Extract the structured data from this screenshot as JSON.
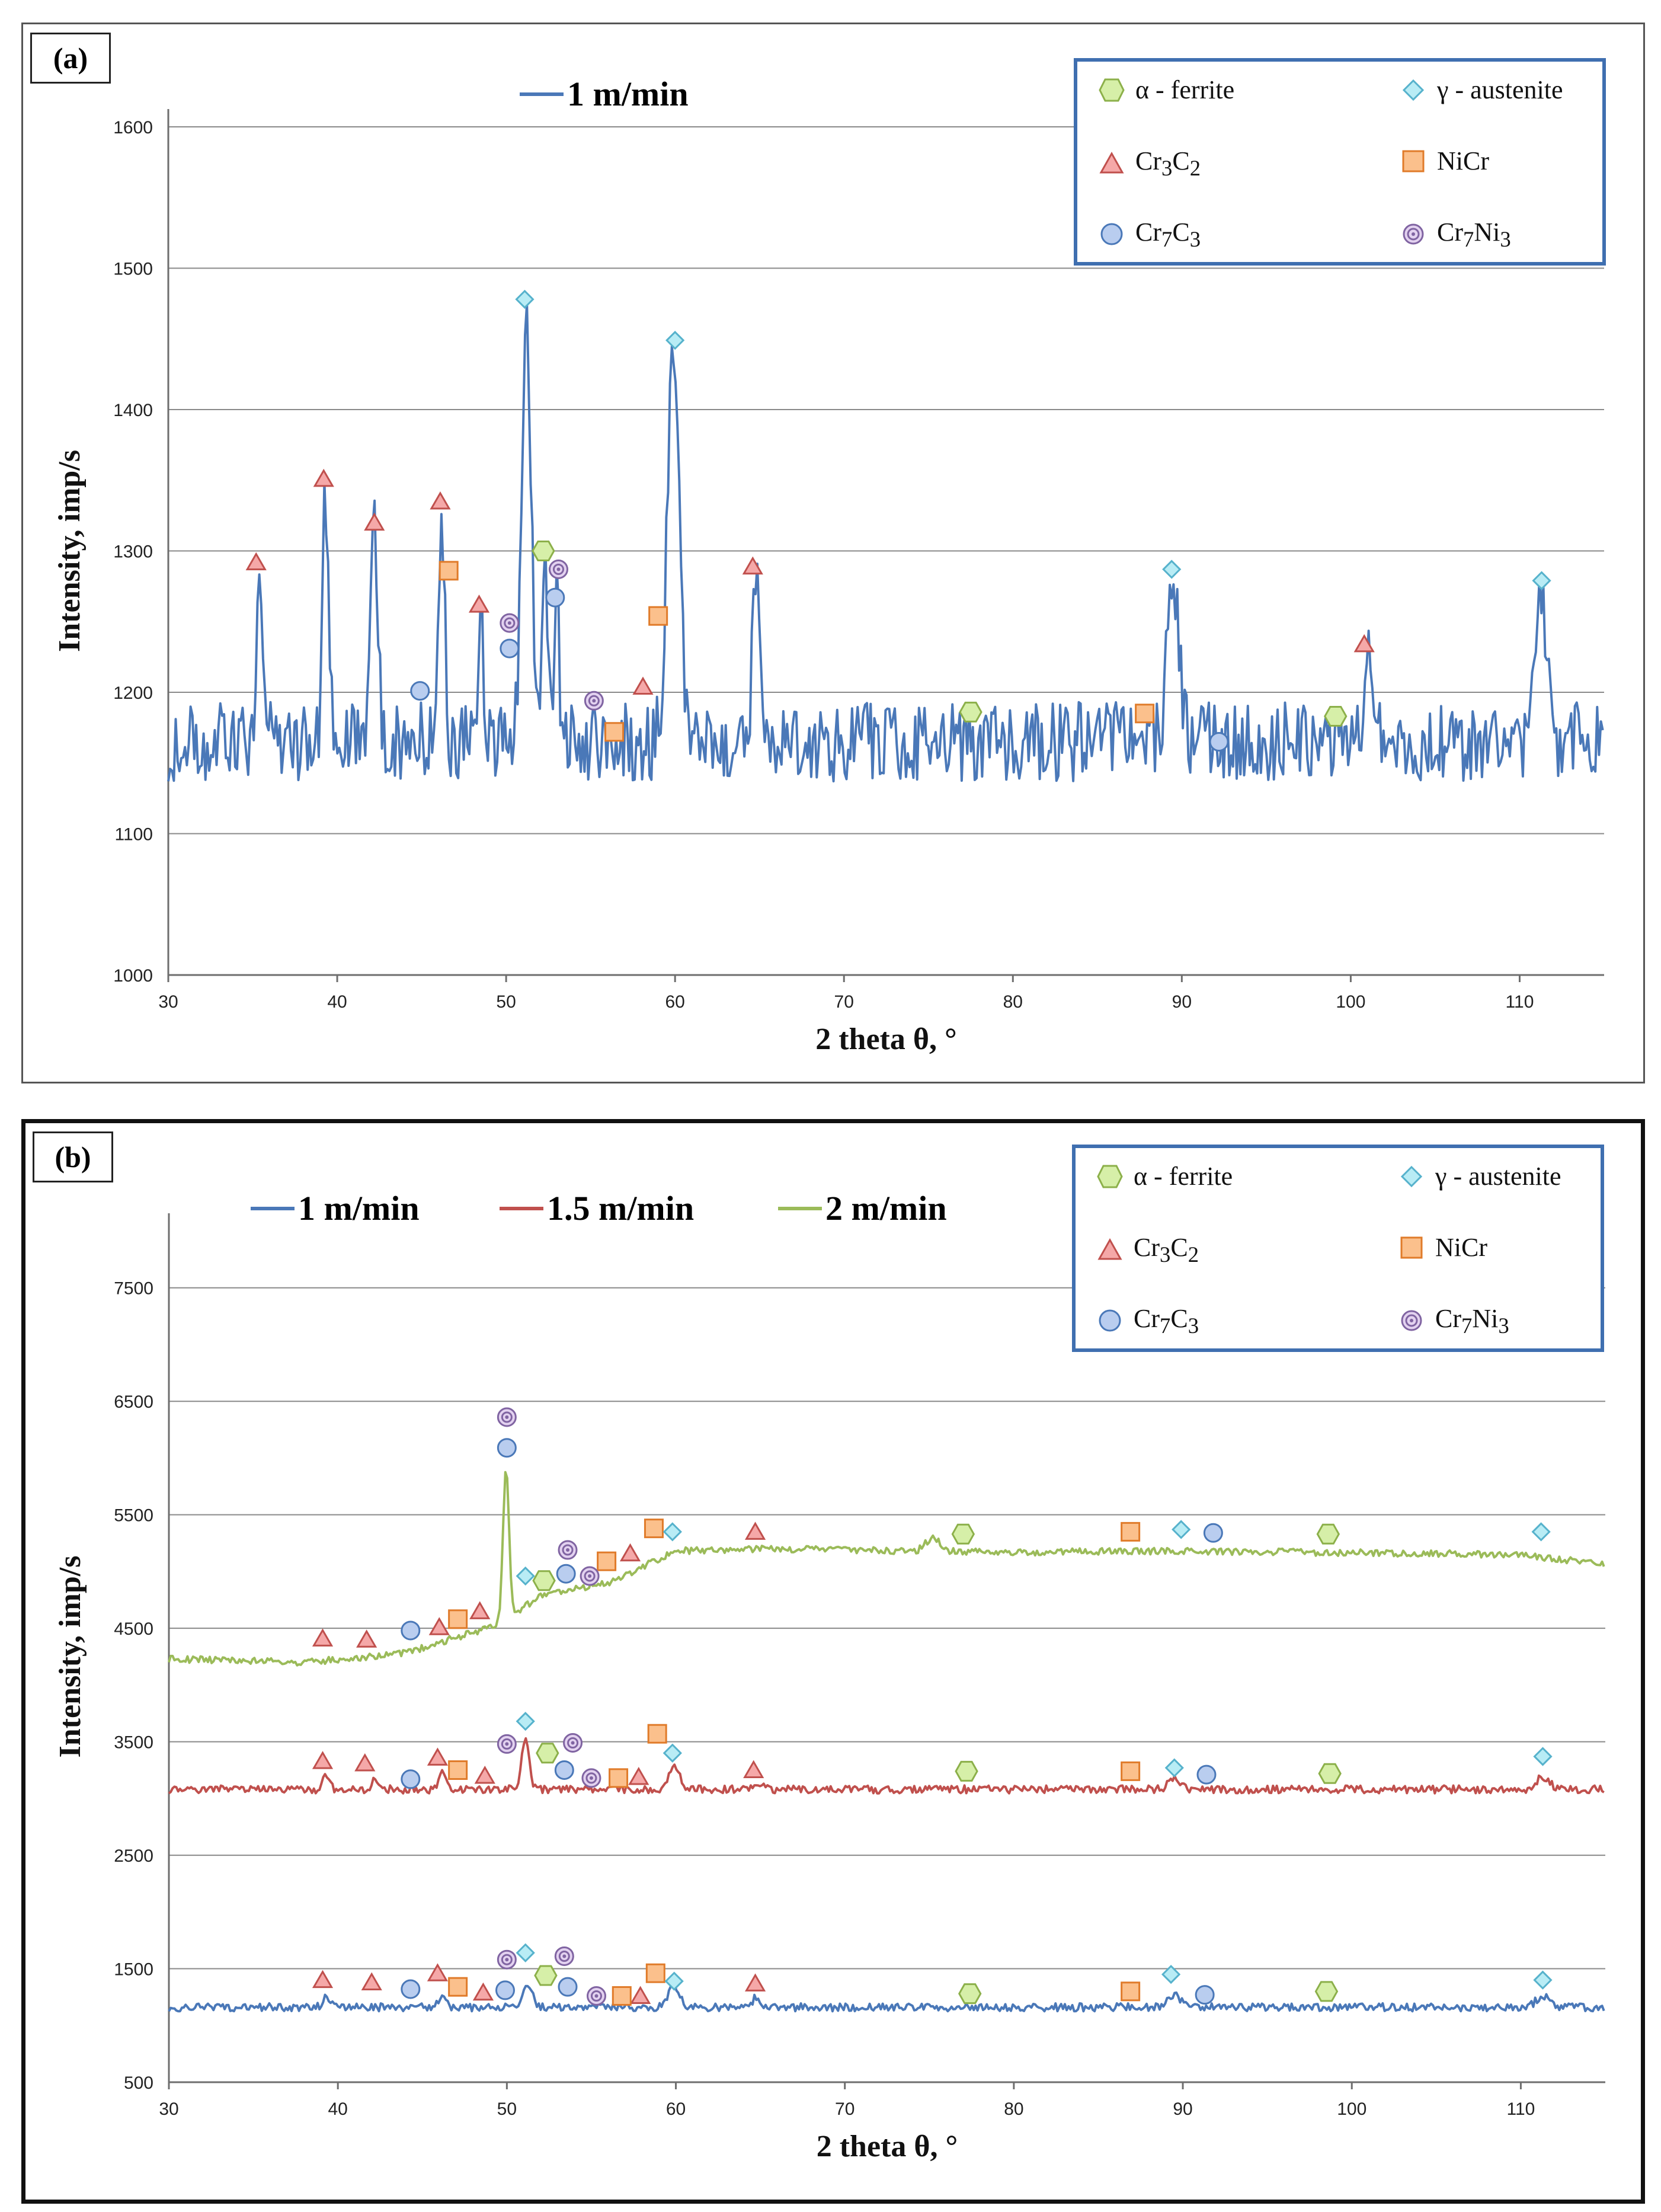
{
  "chart_data": [
    {
      "panel_label": "(a)",
      "type": "line",
      "xlabel": "2 theta θ, °",
      "ylabel": "Intensity, imp/s",
      "xlim": [
        30,
        115
      ],
      "ylim": [
        1000,
        1600
      ],
      "x_ticks": [
        30,
        40,
        50,
        60,
        70,
        80,
        90,
        100,
        110
      ],
      "y_ticks": [
        1000,
        1100,
        1200,
        1300,
        1400,
        1500,
        1600
      ],
      "series": [
        {
          "name": "1 m/min",
          "color": "#4a78b8",
          "baseline": 1165,
          "noise": 28,
          "peaks": [
            [
              35.4,
              1285,
              0.18
            ],
            [
              39.3,
              1340,
              0.18
            ],
            [
              42.2,
              1310,
              0.2
            ],
            [
              46.2,
              1325,
              0.18
            ],
            [
              48.5,
              1250,
              0.16
            ],
            [
              51.2,
              1470,
              0.28
            ],
            [
              52.3,
              1285,
              0.15
            ],
            [
              53.0,
              1265,
              0.15
            ],
            [
              59.9,
              1440,
              0.35
            ],
            [
              64.8,
              1275,
              0.22
            ],
            [
              89.5,
              1275,
              0.35
            ],
            [
              101.0,
              1218,
              0.2
            ],
            [
              111.3,
              1265,
              0.35
            ]
          ]
        }
      ],
      "markers": [
        {
          "phase": "Cr3C2",
          "x": 35.2,
          "y": 1292
        },
        {
          "phase": "Cr3C2",
          "x": 39.2,
          "y": 1351
        },
        {
          "phase": "Cr3C2",
          "x": 42.2,
          "y": 1320
        },
        {
          "phase": "Cr3C2",
          "x": 46.1,
          "y": 1335
        },
        {
          "phase": "Cr3C2",
          "x": 48.4,
          "y": 1262
        },
        {
          "phase": "Cr3C2",
          "x": 58.1,
          "y": 1204
        },
        {
          "phase": "Cr3C2",
          "x": 64.6,
          "y": 1289
        },
        {
          "phase": "Cr3C2",
          "x": 100.8,
          "y": 1234
        },
        {
          "phase": "NiCr",
          "x": 46.6,
          "y": 1286
        },
        {
          "phase": "NiCr",
          "x": 56.4,
          "y": 1172
        },
        {
          "phase": "NiCr",
          "x": 59.0,
          "y": 1254
        },
        {
          "phase": "NiCr",
          "x": 87.8,
          "y": 1185
        },
        {
          "phase": "γ - austenite",
          "x": 51.1,
          "y": 1478
        },
        {
          "phase": "γ - austenite",
          "x": 60.0,
          "y": 1449
        },
        {
          "phase": "γ - austenite",
          "x": 89.4,
          "y": 1287
        },
        {
          "phase": "γ - austenite",
          "x": 111.3,
          "y": 1279
        },
        {
          "phase": "α - ferrite",
          "x": 52.2,
          "y": 1300
        },
        {
          "phase": "α - ferrite",
          "x": 77.5,
          "y": 1186
        },
        {
          "phase": "α - ferrite",
          "x": 99.1,
          "y": 1183
        },
        {
          "phase": "Cr7C3",
          "x": 44.9,
          "y": 1201
        },
        {
          "phase": "Cr7C3",
          "x": 50.2,
          "y": 1231
        },
        {
          "phase": "Cr7C3",
          "x": 52.9,
          "y": 1267
        },
        {
          "phase": "Cr7C3",
          "x": 92.2,
          "y": 1165
        },
        {
          "phase": "Cr7Ni3",
          "x": 50.2,
          "y": 1249
        },
        {
          "phase": "Cr7Ni3",
          "x": 53.1,
          "y": 1287
        },
        {
          "phase": "Cr7Ni3",
          "x": 55.2,
          "y": 1194
        }
      ]
    },
    {
      "panel_label": "(b)",
      "type": "line",
      "xlabel": "2 theta θ, °",
      "ylabel": "Intensity, imp/s",
      "xlim": [
        30,
        115
      ],
      "ylim": [
        500,
        8000
      ],
      "x_ticks": [
        30,
        40,
        50,
        60,
        70,
        80,
        90,
        100,
        110
      ],
      "y_ticks": [
        500,
        1500,
        2500,
        3500,
        4500,
        5500,
        6500,
        7500
      ],
      "series": [
        {
          "name": "1 m/min",
          "color": "#4a78b8",
          "baseline": 1160,
          "noise": 35,
          "peaks": [
            [
              39.3,
              1270,
              0.2
            ],
            [
              46.2,
              1290,
              0.2
            ],
            [
              51.2,
              1360,
              0.3
            ],
            [
              59.9,
              1340,
              0.35
            ],
            [
              64.8,
              1250,
              0.25
            ],
            [
              89.5,
              1270,
              0.35
            ],
            [
              111.3,
              1260,
              0.4
            ]
          ]
        },
        {
          "name": "1.5 m/min",
          "color": "#c0504d",
          "baseline": 3080,
          "noise": 35,
          "peaks": [
            [
              39.3,
              3200,
              0.2
            ],
            [
              42.2,
              3170,
              0.2
            ],
            [
              46.2,
              3220,
              0.2
            ],
            [
              51.1,
              3520,
              0.22
            ],
            [
              59.9,
              3280,
              0.35
            ],
            [
              64.8,
              3150,
              0.25
            ],
            [
              89.5,
              3170,
              0.35
            ],
            [
              111.3,
              3190,
              0.4
            ]
          ]
        },
        {
          "name": "2 m/min",
          "color": "#9bbb59",
          "noise": 30,
          "ramp": [
            [
              30,
              4230
            ],
            [
              38,
              4200
            ],
            [
              44,
              4280
            ],
            [
              47,
              4420
            ],
            [
              49.5,
              4530
            ],
            [
              52,
              4790
            ],
            [
              56,
              4900
            ],
            [
              60,
              5180
            ],
            [
              65,
              5200
            ],
            [
              80,
              5170
            ],
            [
              90,
              5180
            ],
            [
              110,
              5150
            ],
            [
              115,
              5060
            ]
          ],
          "peaks": [
            [
              49.95,
              5900,
              0.18
            ],
            [
              75.2,
              5300,
              0.4
            ]
          ]
        }
      ],
      "markers": [
        {
          "phase": "Cr7Ni3",
          "x": 50.0,
          "y": 6360
        },
        {
          "phase": "Cr7C3",
          "x": 50.0,
          "y": 6090
        },
        {
          "phase": "NiCr",
          "x": 58.7,
          "y": 5380
        },
        {
          "phase": "γ - austenite",
          "x": 59.8,
          "y": 5350
        },
        {
          "phase": "Cr3C2",
          "x": 64.7,
          "y": 5350
        },
        {
          "phase": "α - ferrite",
          "x": 77.0,
          "y": 5330
        },
        {
          "phase": "NiCr",
          "x": 86.9,
          "y": 5350
        },
        {
          "phase": "γ - austenite",
          "x": 89.9,
          "y": 5370
        },
        {
          "phase": "Cr7C3",
          "x": 91.8,
          "y": 5340
        },
        {
          "phase": "α - ferrite",
          "x": 98.6,
          "y": 5330
        },
        {
          "phase": "γ - austenite",
          "x": 111.2,
          "y": 5350
        },
        {
          "phase": "Cr7Ni3",
          "x": 53.6,
          "y": 5190
        },
        {
          "phase": "Cr3C2",
          "x": 57.3,
          "y": 5160
        },
        {
          "phase": "NiCr",
          "x": 55.9,
          "y": 5090
        },
        {
          "phase": "Cr7C3",
          "x": 53.5,
          "y": 4980
        },
        {
          "phase": "Cr7Ni3",
          "x": 54.9,
          "y": 4960
        },
        {
          "phase": "γ - austenite",
          "x": 51.1,
          "y": 4960
        },
        {
          "phase": "α - ferrite",
          "x": 52.2,
          "y": 4920
        },
        {
          "phase": "Cr3C2",
          "x": 48.4,
          "y": 4650
        },
        {
          "phase": "NiCr",
          "x": 47.1,
          "y": 4580
        },
        {
          "phase": "Cr3C2",
          "x": 46.0,
          "y": 4510
        },
        {
          "phase": "Cr7C3",
          "x": 44.3,
          "y": 4480
        },
        {
          "phase": "Cr3C2",
          "x": 39.1,
          "y": 4410
        },
        {
          "phase": "Cr3C2",
          "x": 41.7,
          "y": 4400
        },
        {
          "phase": "γ - austenite",
          "x": 51.1,
          "y": 3680
        },
        {
          "phase": "NiCr",
          "x": 58.9,
          "y": 3570
        },
        {
          "phase": "Cr7Ni3",
          "x": 50.0,
          "y": 3480
        },
        {
          "phase": "Cr7Ni3",
          "x": 53.9,
          "y": 3490
        },
        {
          "phase": "α - ferrite",
          "x": 52.4,
          "y": 3400
        },
        {
          "phase": "γ - austenite",
          "x": 59.8,
          "y": 3400
        },
        {
          "phase": "Cr3C2",
          "x": 39.1,
          "y": 3330
        },
        {
          "phase": "Cr3C2",
          "x": 41.6,
          "y": 3310
        },
        {
          "phase": "Cr3C2",
          "x": 45.9,
          "y": 3360
        },
        {
          "phase": "γ - austenite",
          "x": 111.3,
          "y": 3370
        },
        {
          "phase": "NiCr",
          "x": 47.1,
          "y": 3250
        },
        {
          "phase": "Cr7C3",
          "x": 53.4,
          "y": 3250
        },
        {
          "phase": "Cr3C2",
          "x": 64.6,
          "y": 3250
        },
        {
          "phase": "α - ferrite",
          "x": 77.2,
          "y": 3240
        },
        {
          "phase": "NiCr",
          "x": 86.9,
          "y": 3240
        },
        {
          "phase": "γ - austenite",
          "x": 89.5,
          "y": 3270
        },
        {
          "phase": "α - ferrite",
          "x": 98.7,
          "y": 3220
        },
        {
          "phase": "Cr7C3",
          "x": 91.4,
          "y": 3210
        },
        {
          "phase": "Cr3C2",
          "x": 48.7,
          "y": 3200
        },
        {
          "phase": "Cr3C2",
          "x": 57.8,
          "y": 3190
        },
        {
          "phase": "Cr7C3",
          "x": 44.3,
          "y": 3170
        },
        {
          "phase": "NiCr",
          "x": 56.6,
          "y": 3180
        },
        {
          "phase": "Cr7Ni3",
          "x": 55.0,
          "y": 3180
        },
        {
          "phase": "γ - austenite",
          "x": 51.1,
          "y": 1640
        },
        {
          "phase": "Cr7Ni3",
          "x": 50.0,
          "y": 1580
        },
        {
          "phase": "Cr7Ni3",
          "x": 53.4,
          "y": 1610
        },
        {
          "phase": "NiCr",
          "x": 58.8,
          "y": 1460
        },
        {
          "phase": "α - ferrite",
          "x": 52.3,
          "y": 1440
        },
        {
          "phase": "Cr3C2",
          "x": 45.9,
          "y": 1460
        },
        {
          "phase": "γ - austenite",
          "x": 89.3,
          "y": 1450
        },
        {
          "phase": "Cr3C2",
          "x": 39.1,
          "y": 1400
        },
        {
          "phase": "Cr3C2",
          "x": 42.0,
          "y": 1380
        },
        {
          "phase": "γ - austenite",
          "x": 59.9,
          "y": 1390
        },
        {
          "phase": "γ - austenite",
          "x": 111.3,
          "y": 1400
        },
        {
          "phase": "Cr3C2",
          "x": 64.7,
          "y": 1370
        },
        {
          "phase": "NiCr",
          "x": 47.1,
          "y": 1340
        },
        {
          "phase": "Cr7C3",
          "x": 53.6,
          "y": 1340
        },
        {
          "phase": "Cr7C3",
          "x": 44.3,
          "y": 1320
        },
        {
          "phase": "Cr7C3",
          "x": 49.9,
          "y": 1310
        },
        {
          "phase": "Cr3C2",
          "x": 48.6,
          "y": 1290
        },
        {
          "phase": "NiCr",
          "x": 86.9,
          "y": 1300
        },
        {
          "phase": "α - ferrite",
          "x": 98.5,
          "y": 1300
        },
        {
          "phase": "α - ferrite",
          "x": 77.4,
          "y": 1280
        },
        {
          "phase": "Cr3C2",
          "x": 57.9,
          "y": 1260
        },
        {
          "phase": "Cr7C3",
          "x": 91.3,
          "y": 1270
        },
        {
          "phase": "Cr7Ni3",
          "x": 55.3,
          "y": 1260
        },
        {
          "phase": "NiCr",
          "x": 56.8,
          "y": 1260
        }
      ]
    }
  ],
  "legend_phases": [
    {
      "key": "α - ferrite",
      "label": "α - ferrite",
      "shape": "hexagon",
      "fill": "#d6efa8",
      "stroke": "#8cb04a"
    },
    {
      "key": "γ - austenite",
      "label": "γ - austenite",
      "shape": "diamond",
      "fill": "#b8ecf5",
      "stroke": "#56b2cc"
    },
    {
      "key": "Cr3C2",
      "label": "Cr3C2",
      "shape": "triangle",
      "fill": "#f5a8a8",
      "stroke": "#c0504d"
    },
    {
      "key": "NiCr",
      "label": "NiCr",
      "shape": "square",
      "fill": "#fbc08c",
      "stroke": "#e07b2a"
    },
    {
      "key": "Cr7C3",
      "label": "Cr7C3",
      "shape": "circle",
      "fill": "#b9cdef",
      "stroke": "#4a78b8"
    },
    {
      "key": "Cr7Ni3",
      "label": "Cr7Ni3",
      "shape": "target",
      "fill": "#e3d2f0",
      "stroke": "#8064a2"
    }
  ],
  "legend_text": {
    "ferrite": "α - ferrite",
    "austenite": "γ - austenite",
    "cr3c2": {
      "base1": "Cr",
      "sub1": "3",
      "base2": "C",
      "sub2": "2"
    },
    "nicr": "NiCr",
    "cr7c3": {
      "base1": "Cr",
      "sub1": "7",
      "base2": "C",
      "sub2": "3"
    },
    "cr7ni3": {
      "base1": "Cr",
      "sub1": "7",
      "base2": "Ni",
      "sub2": "3"
    }
  },
  "colors": {
    "grid": "#8a8a8a",
    "axis": "#6e6e6e",
    "legend_border": "#3f6fb0"
  }
}
